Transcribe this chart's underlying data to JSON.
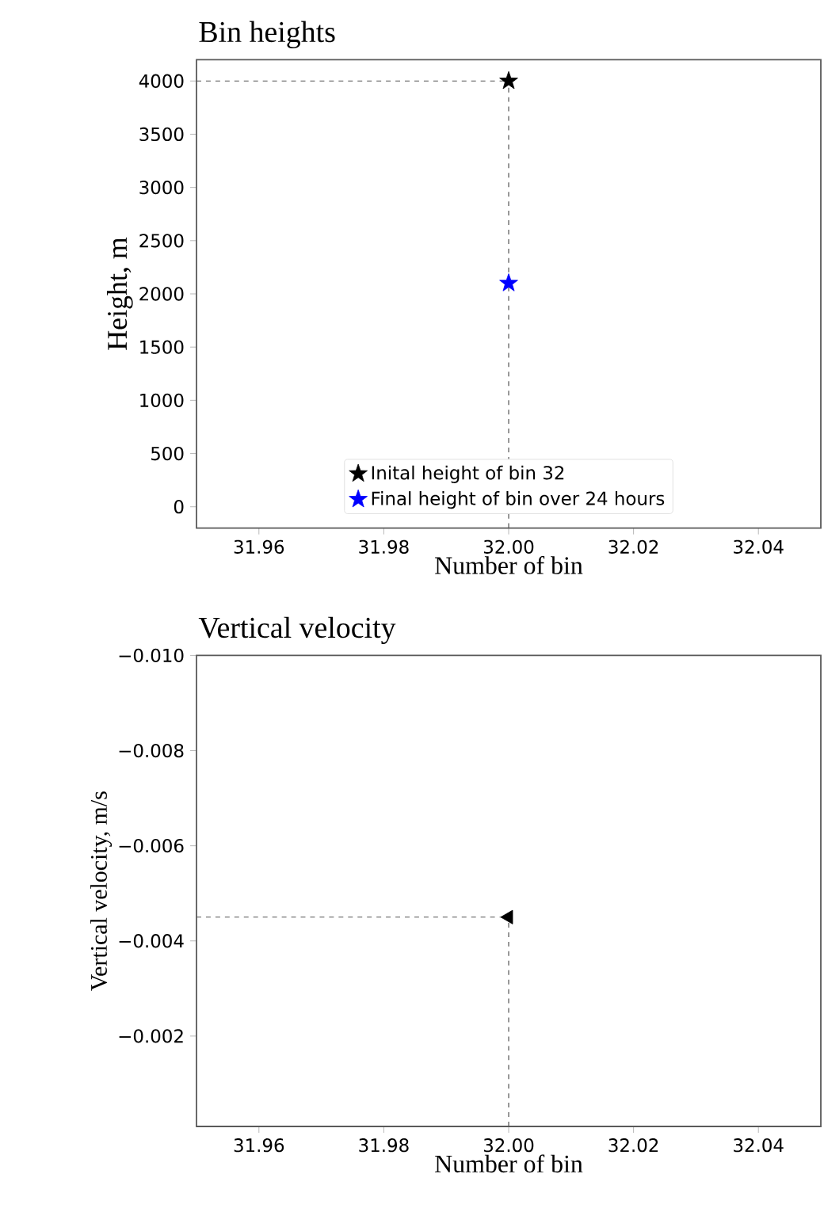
{
  "chart_data": [
    {
      "type": "scatter",
      "title": "Bin heights",
      "xlabel": "Number of bin",
      "ylabel": "Height, m",
      "x": [
        32
      ],
      "xlim": [
        31.95,
        32.05
      ],
      "ylim": [
        -200,
        4200
      ],
      "xticks": [
        {
          "value": 31.96,
          "label": "31.96"
        },
        {
          "value": 31.98,
          "label": "31.98"
        },
        {
          "value": 32,
          "label": "32.00"
        },
        {
          "value": 32.02,
          "label": "32.02"
        },
        {
          "value": 32.04,
          "label": "32.04"
        }
      ],
      "yticks": [
        0,
        500,
        1000,
        1500,
        2000,
        2500,
        3000,
        3500,
        4000
      ],
      "marker": "star",
      "legend": "bottom",
      "series": [
        {
          "name": "Inital height of bin 32",
          "color": "#000000",
          "values": [
            4000
          ]
        },
        {
          "name": "Final height of bin over 24 hours",
          "color": "#0000ff",
          "values": [
            2100
          ]
        }
      ],
      "ref_lines": [
        {
          "axis": "y",
          "value": 4000,
          "line_style": "dashed",
          "color": "#555555"
        },
        {
          "axis": "x",
          "value": 32,
          "line_style": "dashed",
          "color": "#555555"
        }
      ]
    },
    {
      "type": "scatter",
      "title": "Vertical velocity",
      "xlabel": "Number of bin",
      "ylabel": "Vertical velocity, m/s",
      "x": [
        32
      ],
      "xlim": [
        31.95,
        32.05
      ],
      "ylim": [
        -0.0001,
        -0.01
      ],
      "xticks": [
        {
          "value": 31.96,
          "label": "31.96"
        },
        {
          "value": 31.98,
          "label": "31.98"
        },
        {
          "value": 32,
          "label": "32.00"
        },
        {
          "value": 32.02,
          "label": "32.02"
        },
        {
          "value": 32.04,
          "label": "32.04"
        }
      ],
      "yticks": [
        {
          "value": -0.01,
          "label": "−0.010"
        },
        {
          "value": -0.008,
          "label": "−0.008"
        },
        {
          "value": -0.006,
          "label": "−0.006"
        },
        {
          "value": -0.004,
          "label": "−0.004"
        },
        {
          "value": -0.002,
          "label": "−0.002"
        }
      ],
      "marker": "triangle",
      "legend": false,
      "series": [
        {
          "color": "#000000",
          "values": [
            -0.0045
          ]
        }
      ],
      "ref_lines": [
        {
          "axis": "y",
          "value": -0.0045,
          "line_style": "dashed",
          "color": "#555555"
        },
        {
          "axis": "x",
          "value": 32,
          "line_style": "dashed",
          "color": "#555555"
        }
      ]
    }
  ]
}
